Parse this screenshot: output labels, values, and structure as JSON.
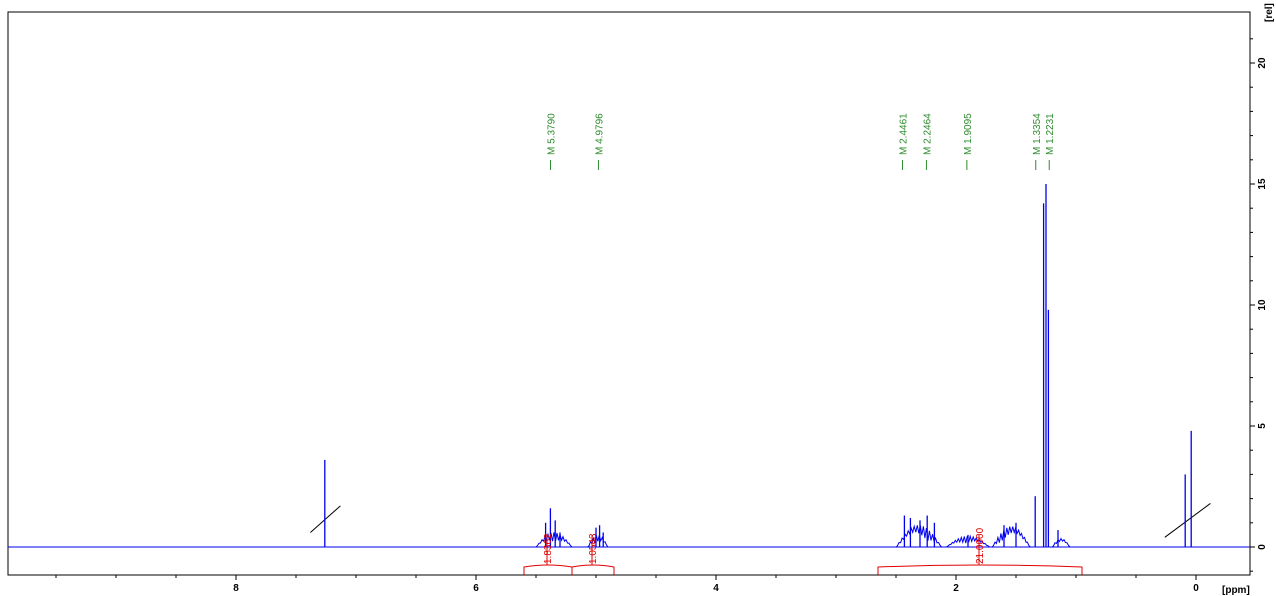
{
  "chart_data": {
    "type": "line",
    "x_unit_label": "[ppm]",
    "y_unit_label": "[rel]",
    "x_axis": {
      "reversed": true,
      "range": [
        9.9,
        -0.45
      ],
      "major_ticks": [
        8,
        6,
        4,
        2,
        0
      ],
      "tick_labels": [
        "8",
        "6",
        "4",
        "2",
        "0"
      ]
    },
    "y_axis": {
      "range": [
        -1.2,
        22
      ],
      "major_ticks": [
        0,
        5,
        10,
        15,
        20
      ],
      "tick_labels": [
        "0",
        "5",
        "10",
        "15",
        "20"
      ]
    },
    "colors": {
      "spectrum": "#0000ee",
      "peak_labels": "#2e8b2e",
      "integrals": "#e00000",
      "baseline_marker": "#000000"
    },
    "peak_labels": [
      {
        "ppm": 5.379,
        "text": "M 5.3790"
      },
      {
        "ppm": 4.9796,
        "text": "M 4.9796"
      },
      {
        "ppm": 2.4461,
        "text": "M 2.4461"
      },
      {
        "ppm": 2.2464,
        "text": "M 2.2464"
      },
      {
        "ppm": 1.9095,
        "text": "M 1.9095"
      },
      {
        "ppm": 1.3354,
        "text": "M 1.3354"
      },
      {
        "ppm": 1.2231,
        "text": "M 1.2231"
      }
    ],
    "integrals": [
      {
        "from": 5.6,
        "to": 5.2,
        "value_text": "1.8362"
      },
      {
        "from": 5.2,
        "to": 4.85,
        "value_text": "1.0543"
      },
      {
        "from": 2.65,
        "to": 0.95,
        "value_text": "21.0000"
      }
    ],
    "peaks": [
      {
        "ppm": 7.26,
        "height": 3.6
      },
      {
        "ppm": 5.42,
        "height": 1.0
      },
      {
        "ppm": 5.38,
        "height": 1.6
      },
      {
        "ppm": 5.34,
        "height": 1.1
      },
      {
        "ppm": 5.3,
        "height": 0.6
      },
      {
        "ppm": 5.0,
        "height": 0.8
      },
      {
        "ppm": 4.97,
        "height": 0.9
      },
      {
        "ppm": 4.94,
        "height": 0.6
      },
      {
        "ppm": 2.43,
        "height": 1.3
      },
      {
        "ppm": 2.38,
        "height": 1.2
      },
      {
        "ppm": 2.3,
        "height": 1.1
      },
      {
        "ppm": 2.24,
        "height": 1.3
      },
      {
        "ppm": 2.18,
        "height": 1.0
      },
      {
        "ppm": 1.9,
        "height": 0.5
      },
      {
        "ppm": 1.6,
        "height": 0.9
      },
      {
        "ppm": 1.5,
        "height": 1.0
      },
      {
        "ppm": 1.34,
        "height": 2.1
      },
      {
        "ppm": 1.27,
        "height": 14.2
      },
      {
        "ppm": 1.25,
        "height": 15.0
      },
      {
        "ppm": 1.23,
        "height": 9.8
      },
      {
        "ppm": 1.15,
        "height": 0.7
      },
      {
        "ppm": 0.09,
        "height": 3.0
      },
      {
        "ppm": 0.04,
        "height": 4.8
      }
    ],
    "humps": [
      {
        "from": 5.5,
        "to": 5.2,
        "height": 0.6
      },
      {
        "from": 5.07,
        "to": 4.9,
        "height": 0.5
      },
      {
        "from": 2.5,
        "to": 2.12,
        "height": 0.9
      },
      {
        "from": 2.08,
        "to": 1.72,
        "height": 0.45
      },
      {
        "from": 1.7,
        "to": 1.38,
        "height": 0.85
      },
      {
        "from": 1.2,
        "to": 1.05,
        "height": 0.35
      }
    ],
    "baseline_markers": [
      {
        "from_ppm": 7.38,
        "from_y": 0.6,
        "to_ppm": 7.13,
        "to_y": 1.7
      },
      {
        "from_ppm": 0.26,
        "from_y": 0.4,
        "to_ppm": -0.12,
        "to_y": 1.8
      }
    ]
  }
}
